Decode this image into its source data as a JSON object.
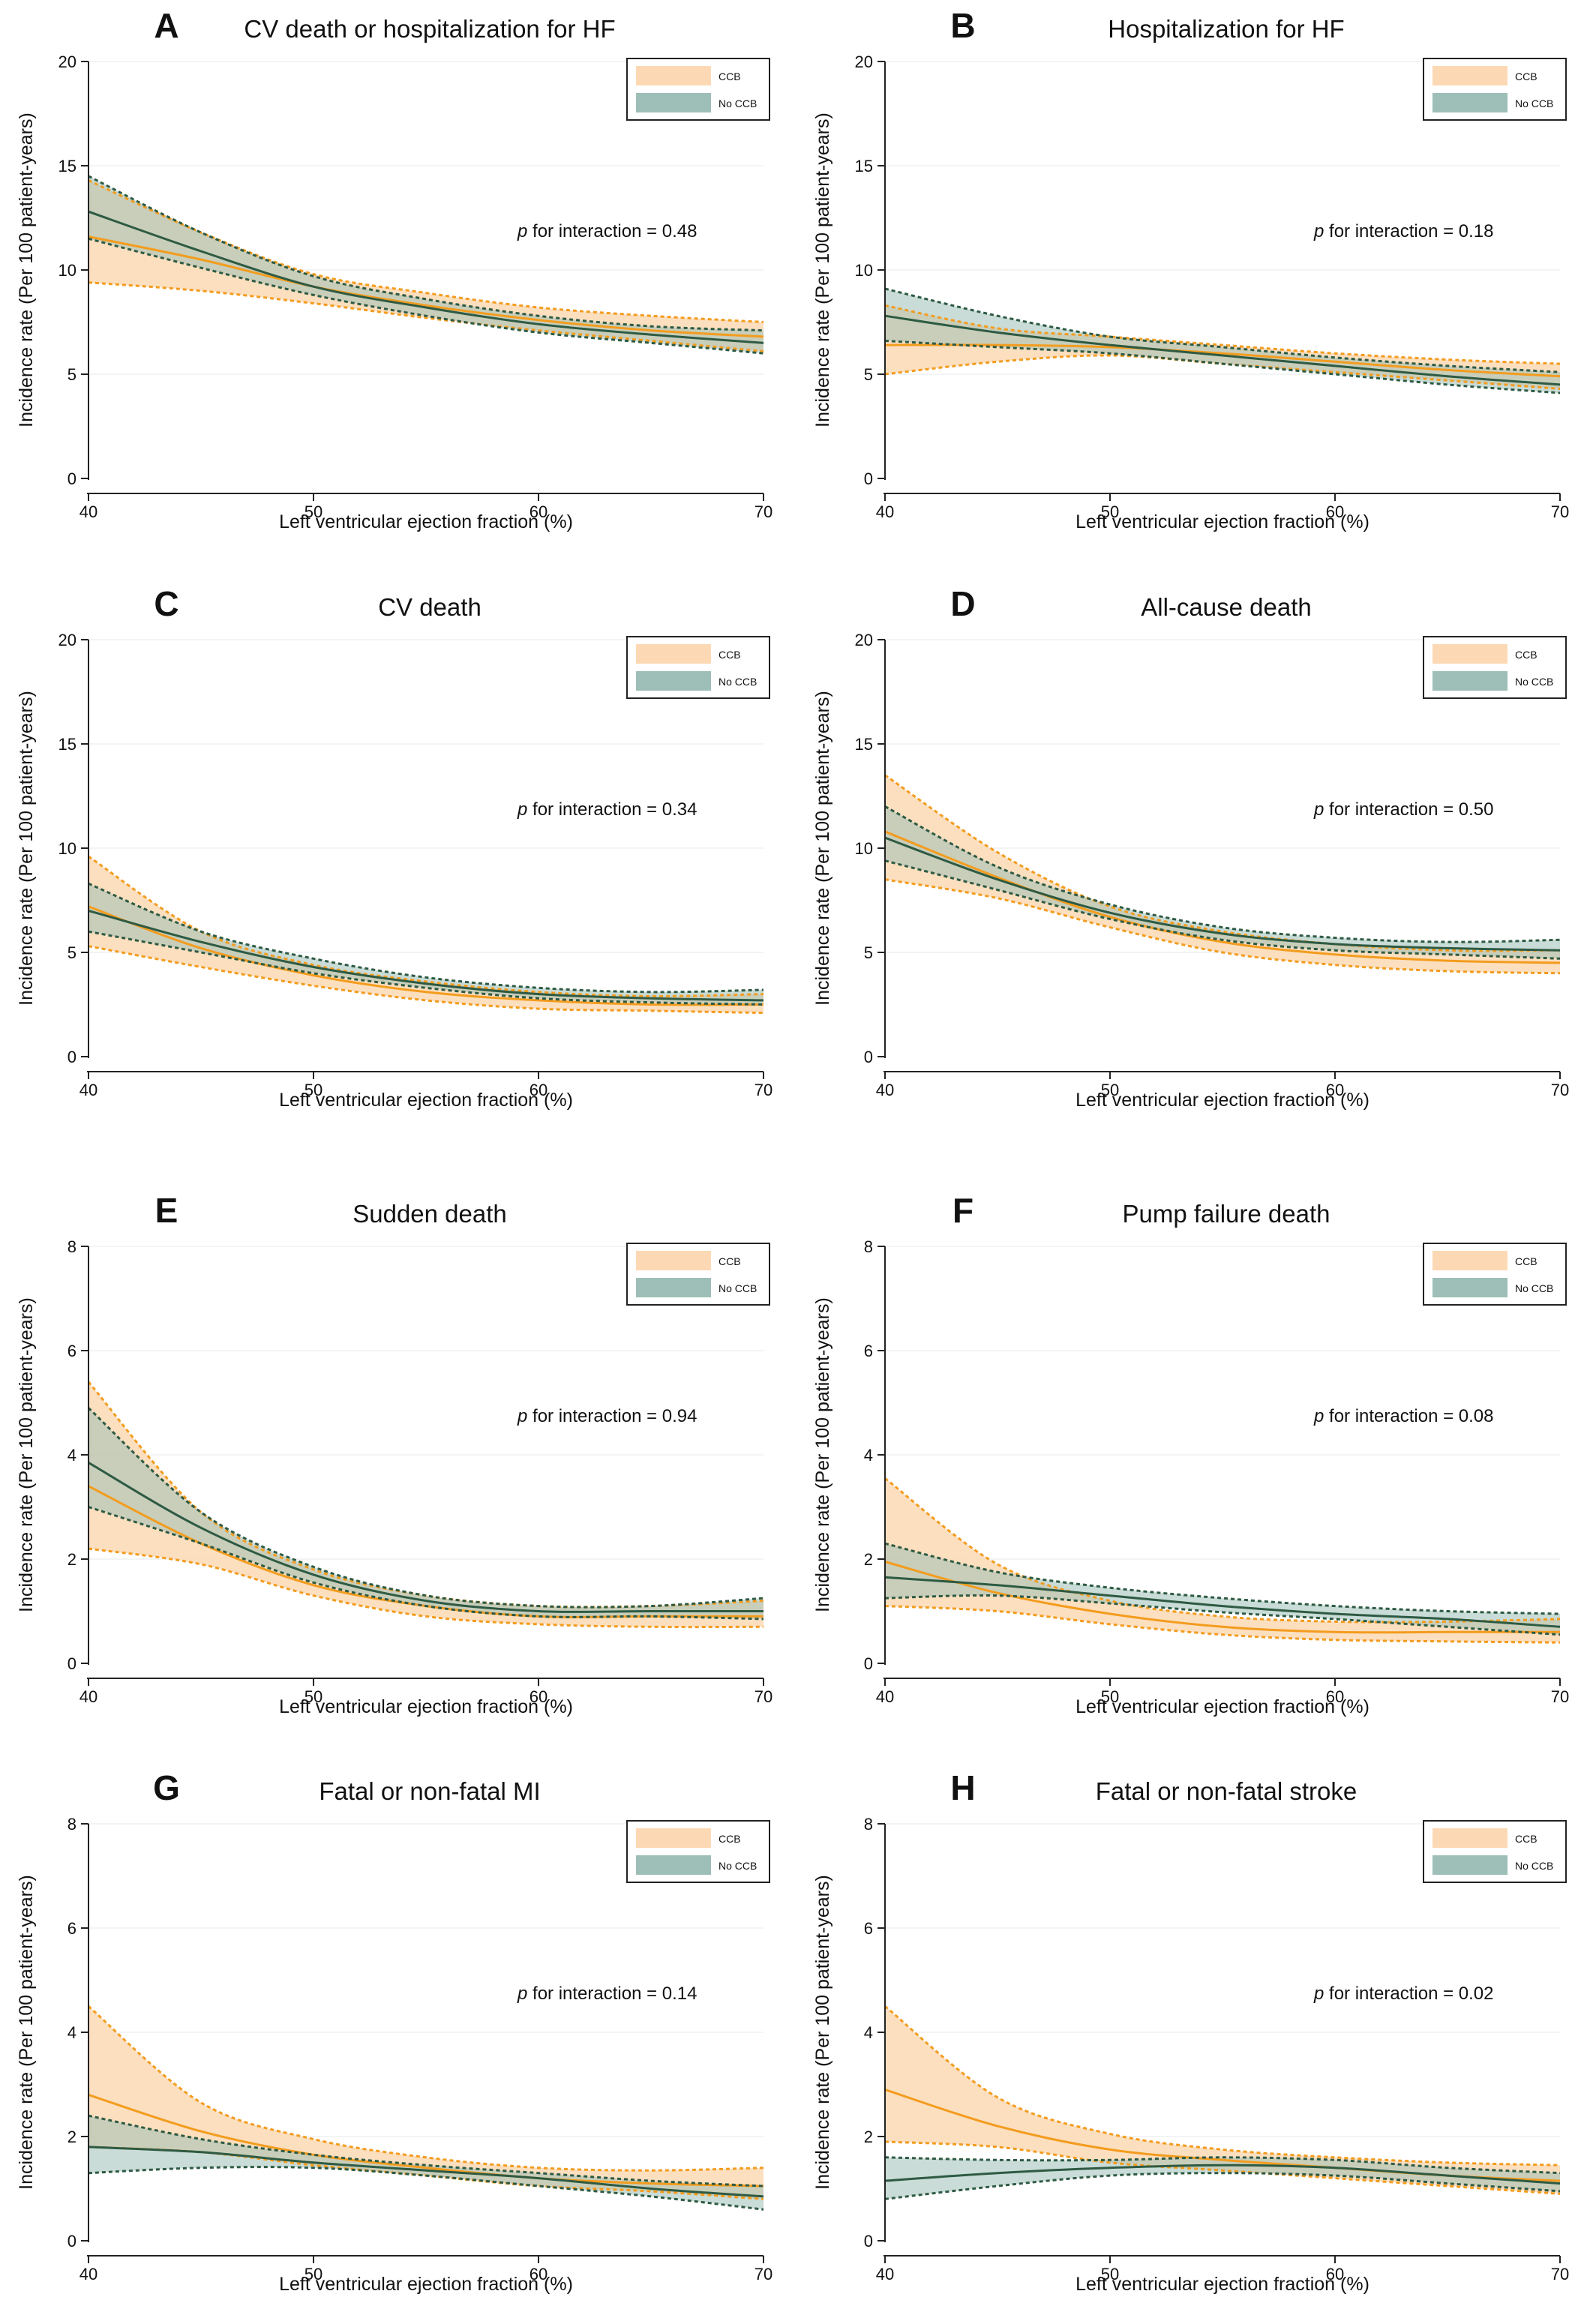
{
  "colors": {
    "ccb_line": "#F39C1E",
    "ccb_fill": "#FCD9B4",
    "noccb_line": "#2E5A43",
    "noccb_fill": "#9DBFB7",
    "axis": "#222222"
  },
  "chart_data": [
    {
      "type": "line",
      "letter": "A",
      "title": "CV death or hospitalization for HF",
      "xlabel": "Left ventricular ejection fraction (%)",
      "ylabel": "Incidence rate (Per 100 patient-years)",
      "xlim": [
        40,
        70
      ],
      "ylim": [
        0,
        20
      ],
      "xticks": [
        40,
        50,
        60,
        70
      ],
      "yticks": [
        0,
        5,
        10,
        15,
        20
      ],
      "p_prefix": "p",
      "p_text": " for interaction  =  0.48",
      "legend": [
        "CCB",
        "No CCB"
      ],
      "x": [
        40,
        45,
        50,
        55,
        60,
        65,
        70
      ],
      "series": [
        {
          "name": "CCB",
          "line": [
            11.6,
            10.5,
            9.2,
            8.3,
            7.6,
            7.1,
            6.8
          ],
          "lower": [
            9.4,
            9.0,
            8.4,
            7.7,
            7.1,
            6.6,
            6.1
          ],
          "upper": [
            14.3,
            11.8,
            9.8,
            8.9,
            8.2,
            7.8,
            7.5
          ]
        },
        {
          "name": "No CCB",
          "line": [
            12.8,
            10.9,
            9.2,
            8.2,
            7.4,
            6.9,
            6.5
          ],
          "lower": [
            11.5,
            10.1,
            8.8,
            7.8,
            7.0,
            6.5,
            6.0
          ],
          "upper": [
            14.5,
            11.8,
            9.7,
            8.6,
            7.8,
            7.3,
            7.1
          ]
        }
      ]
    },
    {
      "type": "line",
      "letter": "B",
      "title": "Hospitalization for HF",
      "xlabel": "Left ventricular ejection fraction (%)",
      "ylabel": "Incidence rate (Per 100 patient-years)",
      "xlim": [
        40,
        70
      ],
      "ylim": [
        0,
        20
      ],
      "xticks": [
        40,
        50,
        60,
        70
      ],
      "yticks": [
        0,
        5,
        10,
        15,
        20
      ],
      "p_prefix": "p",
      "p_text": " for interaction  =  0.18",
      "legend": [
        "CCB",
        "No CCB"
      ],
      "x": [
        40,
        45,
        50,
        55,
        60,
        65,
        70
      ],
      "series": [
        {
          "name": "CCB",
          "line": [
            6.4,
            6.4,
            6.3,
            6.0,
            5.6,
            5.2,
            4.9
          ],
          "lower": [
            5.0,
            5.6,
            5.9,
            5.5,
            5.1,
            4.7,
            4.3
          ],
          "upper": [
            8.3,
            7.2,
            6.8,
            6.4,
            6.0,
            5.7,
            5.5
          ]
        },
        {
          "name": "No CCB",
          "line": [
            7.8,
            7.0,
            6.4,
            5.9,
            5.4,
            4.9,
            4.5
          ],
          "lower": [
            6.6,
            6.3,
            6.0,
            5.5,
            5.0,
            4.5,
            4.1
          ],
          "upper": [
            9.1,
            7.8,
            6.8,
            6.3,
            5.8,
            5.4,
            5.1
          ]
        }
      ]
    },
    {
      "type": "line",
      "letter": "C",
      "title": "CV death",
      "xlabel": "Left ventricular ejection fraction (%)",
      "ylabel": "Incidence rate (Per 100 patient-years)",
      "xlim": [
        40,
        70
      ],
      "ylim": [
        0,
        20
      ],
      "xticks": [
        40,
        50,
        60,
        70
      ],
      "yticks": [
        0,
        5,
        10,
        15,
        20
      ],
      "p_prefix": "p",
      "p_text": " for interaction  =  0.34",
      "legend": [
        "CCB",
        "No CCB"
      ],
      "x": [
        40,
        45,
        50,
        55,
        60,
        65,
        70
      ],
      "series": [
        {
          "name": "CCB",
          "line": [
            7.2,
            5.2,
            3.9,
            3.1,
            2.7,
            2.5,
            2.5
          ],
          "lower": [
            5.3,
            4.3,
            3.4,
            2.7,
            2.3,
            2.2,
            2.1
          ],
          "upper": [
            9.6,
            6.0,
            4.4,
            3.6,
            3.1,
            2.9,
            3.0
          ]
        },
        {
          "name": "No CCB",
          "line": [
            7.0,
            5.5,
            4.3,
            3.5,
            3.0,
            2.8,
            2.7
          ],
          "lower": [
            6.0,
            5.0,
            4.0,
            3.3,
            2.8,
            2.6,
            2.5
          ],
          "upper": [
            8.3,
            6.0,
            4.7,
            3.8,
            3.3,
            3.1,
            3.2
          ]
        }
      ]
    },
    {
      "type": "line",
      "letter": "D",
      "title": "All-cause death",
      "xlabel": "Left ventricular ejection fraction (%)",
      "ylabel": "Incidence rate (Per 100 patient-years)",
      "xlim": [
        40,
        70
      ],
      "ylim": [
        0,
        20
      ],
      "xticks": [
        40,
        50,
        60,
        70
      ],
      "yticks": [
        0,
        5,
        10,
        15,
        20
      ],
      "p_prefix": "p",
      "p_text": " for interaction  =  0.50",
      "legend": [
        "CCB",
        "No CCB"
      ],
      "x": [
        40,
        45,
        50,
        55,
        60,
        65,
        70
      ],
      "series": [
        {
          "name": "CCB",
          "line": [
            10.8,
            8.6,
            6.7,
            5.5,
            4.9,
            4.6,
            4.5
          ],
          "lower": [
            8.5,
            7.6,
            6.2,
            5.0,
            4.4,
            4.1,
            4.0
          ],
          "upper": [
            13.5,
            9.8,
            7.2,
            6.0,
            5.4,
            5.1,
            5.1
          ]
        },
        {
          "name": "No CCB",
          "line": [
            10.5,
            8.5,
            6.9,
            5.9,
            5.4,
            5.2,
            5.1
          ],
          "lower": [
            9.4,
            8.0,
            6.6,
            5.6,
            5.1,
            4.9,
            4.7
          ],
          "upper": [
            12.0,
            9.1,
            7.3,
            6.2,
            5.7,
            5.5,
            5.6
          ]
        }
      ]
    },
    {
      "type": "line",
      "letter": "E",
      "title": "Sudden death",
      "xlabel": "Left ventricular ejection fraction (%)",
      "ylabel": "Incidence rate (Per 100 patient-years)",
      "xlim": [
        40,
        70
      ],
      "ylim": [
        0,
        8
      ],
      "xticks": [
        40,
        50,
        60,
        70
      ],
      "yticks": [
        0,
        2,
        4,
        6,
        8
      ],
      "p_prefix": "p",
      "p_text": " for interaction  =  0.94",
      "legend": [
        "CCB",
        "No CCB"
      ],
      "x": [
        40,
        45,
        50,
        55,
        60,
        65,
        70
      ],
      "series": [
        {
          "name": "CCB",
          "line": [
            3.4,
            2.3,
            1.5,
            1.1,
            0.9,
            0.9,
            0.9
          ],
          "lower": [
            2.2,
            1.9,
            1.3,
            0.9,
            0.75,
            0.7,
            0.7
          ],
          "upper": [
            5.4,
            2.9,
            1.8,
            1.3,
            1.1,
            1.1,
            1.2
          ]
        },
        {
          "name": "No CCB",
          "line": [
            3.85,
            2.6,
            1.7,
            1.2,
            1.0,
            1.0,
            1.0
          ],
          "lower": [
            3.0,
            2.3,
            1.55,
            1.1,
            0.9,
            0.9,
            0.85
          ],
          "upper": [
            4.9,
            2.9,
            1.85,
            1.3,
            1.1,
            1.1,
            1.25
          ]
        }
      ]
    },
    {
      "type": "line",
      "letter": "F",
      "title": "Pump failure death",
      "xlabel": "Left ventricular ejection fraction (%)",
      "ylabel": "Incidence rate (Per 100 patient-years)",
      "xlim": [
        40,
        70
      ],
      "ylim": [
        0,
        8
      ],
      "xticks": [
        40,
        50,
        60,
        70
      ],
      "yticks": [
        0,
        2,
        4,
        6,
        8
      ],
      "p_prefix": "p",
      "p_text": " for interaction  =  0.08",
      "legend": [
        "CCB",
        "No CCB"
      ],
      "x": [
        40,
        45,
        50,
        55,
        60,
        65,
        70
      ],
      "series": [
        {
          "name": "CCB",
          "line": [
            1.95,
            1.35,
            0.95,
            0.7,
            0.6,
            0.6,
            0.6
          ],
          "lower": [
            1.1,
            1.0,
            0.75,
            0.55,
            0.45,
            0.42,
            0.4
          ],
          "upper": [
            3.55,
            1.9,
            1.2,
            0.9,
            0.8,
            0.8,
            0.85
          ]
        },
        {
          "name": "No CCB",
          "line": [
            1.65,
            1.5,
            1.3,
            1.1,
            0.95,
            0.85,
            0.7
          ],
          "lower": [
            1.25,
            1.3,
            1.15,
            0.98,
            0.85,
            0.7,
            0.55
          ],
          "upper": [
            2.3,
            1.75,
            1.45,
            1.25,
            1.1,
            1.0,
            0.95
          ]
        }
      ]
    },
    {
      "type": "line",
      "letter": "G",
      "title": "Fatal or non-fatal MI",
      "xlabel": "Left ventricular ejection fraction (%)",
      "ylabel": "Incidence rate (Per 100 patient-years)",
      "xlim": [
        40,
        70
      ],
      "ylim": [
        0,
        8
      ],
      "xticks": [
        40,
        50,
        60,
        70
      ],
      "yticks": [
        0,
        2,
        4,
        6,
        8
      ],
      "p_prefix": "p",
      "p_text": " for interaction  =  0.14",
      "legend": [
        "CCB",
        "No CCB"
      ],
      "x": [
        40,
        45,
        50,
        55,
        60,
        65,
        70
      ],
      "series": [
        {
          "name": "CCB",
          "line": [
            2.8,
            2.1,
            1.65,
            1.4,
            1.2,
            1.1,
            1.05
          ],
          "lower": [
            1.8,
            1.7,
            1.45,
            1.25,
            1.05,
            0.95,
            0.8
          ],
          "upper": [
            4.5,
            2.65,
            1.95,
            1.6,
            1.4,
            1.35,
            1.4
          ]
        },
        {
          "name": "No CCB",
          "line": [
            1.8,
            1.7,
            1.5,
            1.35,
            1.2,
            1.0,
            0.85
          ],
          "lower": [
            1.3,
            1.4,
            1.4,
            1.25,
            1.05,
            0.85,
            0.6
          ],
          "upper": [
            2.4,
            1.95,
            1.65,
            1.45,
            1.3,
            1.15,
            1.05
          ]
        }
      ]
    },
    {
      "type": "line",
      "letter": "H",
      "title": "Fatal or non-fatal stroke",
      "xlabel": "Left ventricular ejection fraction (%)",
      "ylabel": "Incidence rate (Per 100 patient-years)",
      "xlim": [
        40,
        70
      ],
      "ylim": [
        0,
        8
      ],
      "xticks": [
        40,
        50,
        60,
        70
      ],
      "yticks": [
        0,
        2,
        4,
        6,
        8
      ],
      "p_prefix": "p",
      "p_text": " for interaction  =  0.02",
      "legend": [
        "CCB",
        "No CCB"
      ],
      "x": [
        40,
        45,
        50,
        55,
        60,
        65,
        70
      ],
      "series": [
        {
          "name": "CCB",
          "line": [
            2.9,
            2.2,
            1.75,
            1.55,
            1.4,
            1.25,
            1.15
          ],
          "lower": [
            1.9,
            1.8,
            1.5,
            1.35,
            1.2,
            1.05,
            0.9
          ],
          "upper": [
            4.5,
            2.75,
            2.05,
            1.75,
            1.6,
            1.5,
            1.45
          ]
        },
        {
          "name": "No CCB",
          "line": [
            1.15,
            1.3,
            1.4,
            1.45,
            1.4,
            1.25,
            1.1
          ],
          "lower": [
            0.8,
            1.05,
            1.25,
            1.3,
            1.25,
            1.1,
            0.95
          ],
          "upper": [
            1.6,
            1.55,
            1.55,
            1.6,
            1.55,
            1.4,
            1.3
          ]
        }
      ]
    }
  ]
}
